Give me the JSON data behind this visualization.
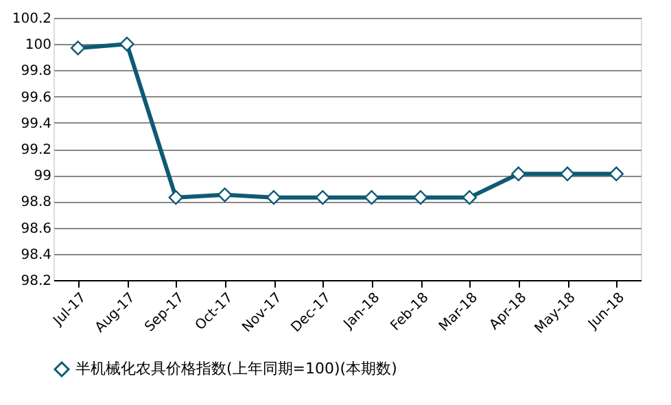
{
  "chart_data": {
    "type": "line",
    "categories": [
      "Jul-17",
      "Aug-17",
      "Sep-17",
      "Oct-17",
      "Nov-17",
      "Dec-17",
      "Jan-18",
      "Feb-18",
      "Mar-18",
      "Apr-18",
      "May-18",
      "Jun-18"
    ],
    "series": [
      {
        "name": "半机械化农具价格指数(上年同期=100)(本期数)",
        "color": "#0e5a73",
        "values": [
          99.97,
          100.0,
          98.83,
          98.85,
          98.83,
          98.83,
          98.83,
          98.83,
          98.83,
          99.01,
          99.01,
          99.01
        ]
      }
    ],
    "ylim": [
      98.2,
      100.2
    ],
    "yticks": [
      98.2,
      98.4,
      98.6,
      98.8,
      99,
      99.2,
      99.4,
      99.6,
      99.8,
      100,
      100.2
    ],
    "grid": "y",
    "legend": "bottom",
    "marker": "diamond",
    "line_style": "solid"
  }
}
